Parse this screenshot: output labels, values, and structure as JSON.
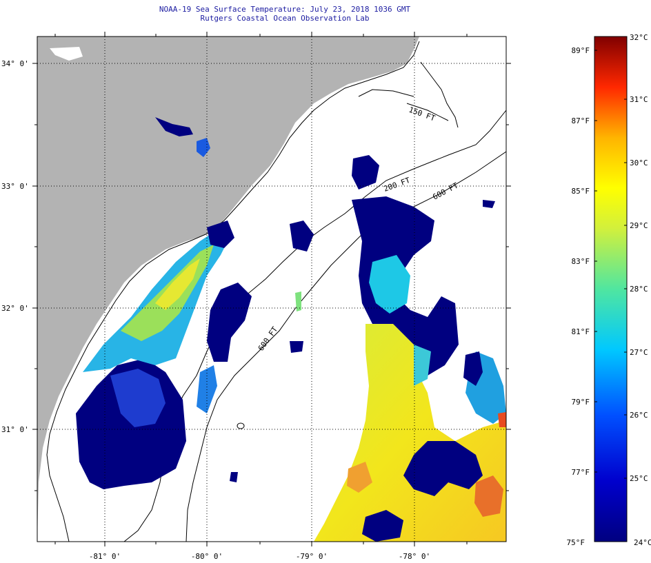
{
  "title": "NOAA-19 Sea Surface Temperature:  July 23, 2018 1036 GMT",
  "subtitle": "Rutgers Coastal Ocean Observation Lab",
  "map": {
    "lat_labels": [
      "34° 0'",
      "33° 0'",
      "32° 0'",
      "31° 0'"
    ],
    "lon_labels": [
      "-81° 0'",
      "-80° 0'",
      "-79° 0'",
      "-78° 0'"
    ],
    "isobath_labels": [
      "150 FT",
      "200 FT",
      "600 FT",
      "600 FT"
    ],
    "colors": {
      "land": "#b3b3b3",
      "ocean_nodata": "#ffffff",
      "cold": "#000080",
      "warm": "#f5e400"
    }
  },
  "colorbar": {
    "fahrenheit": [
      "89°F",
      "87°F",
      "85°F",
      "83°F",
      "81°F",
      "79°F",
      "77°F",
      "75°F"
    ],
    "celsius": [
      "32°C",
      "31°C",
      "30°C",
      "29°C",
      "28°C",
      "27°C",
      "26°C",
      "25°C",
      "24°C"
    ]
  }
}
